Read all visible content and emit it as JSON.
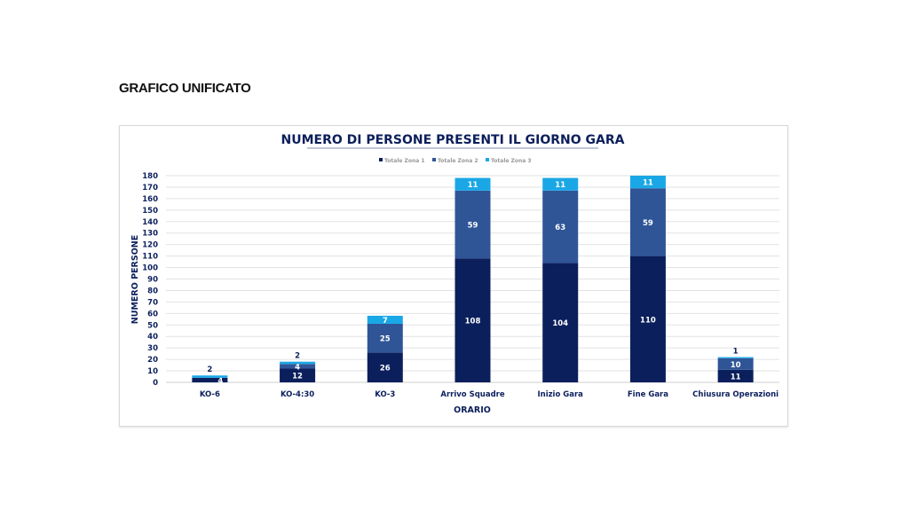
{
  "heading": "GRAFICO UNIFICATO",
  "chart_data": {
    "type": "bar",
    "stacked": true,
    "title": "NUMERO DI PERSONE PRESENTI IL GIORNO GARA",
    "xlabel": "ORARIO",
    "ylabel": "NUMERO PERSONE",
    "ylim": [
      0,
      180
    ],
    "ytick_step": 10,
    "grid": true,
    "legend_position": "top",
    "categories": [
      "KO-6",
      "KO-4:30",
      "KO-3",
      "Arrivo Squadre",
      "Inizio Gara",
      "Fine Gara",
      "Chiusura Operazioni"
    ],
    "series": [
      {
        "name": "Totale Zona 1",
        "color": "#0b1f5c",
        "values": [
          4,
          12,
          26,
          108,
          104,
          110,
          11
        ]
      },
      {
        "name": "Totale Zona 2",
        "color": "#2f5597",
        "values": [
          0,
          4,
          25,
          59,
          63,
          59,
          10
        ]
      },
      {
        "name": "Totale Zona 3",
        "color": "#1aa7e6",
        "values": [
          2,
          2,
          7,
          11,
          11,
          11,
          1
        ]
      }
    ]
  }
}
